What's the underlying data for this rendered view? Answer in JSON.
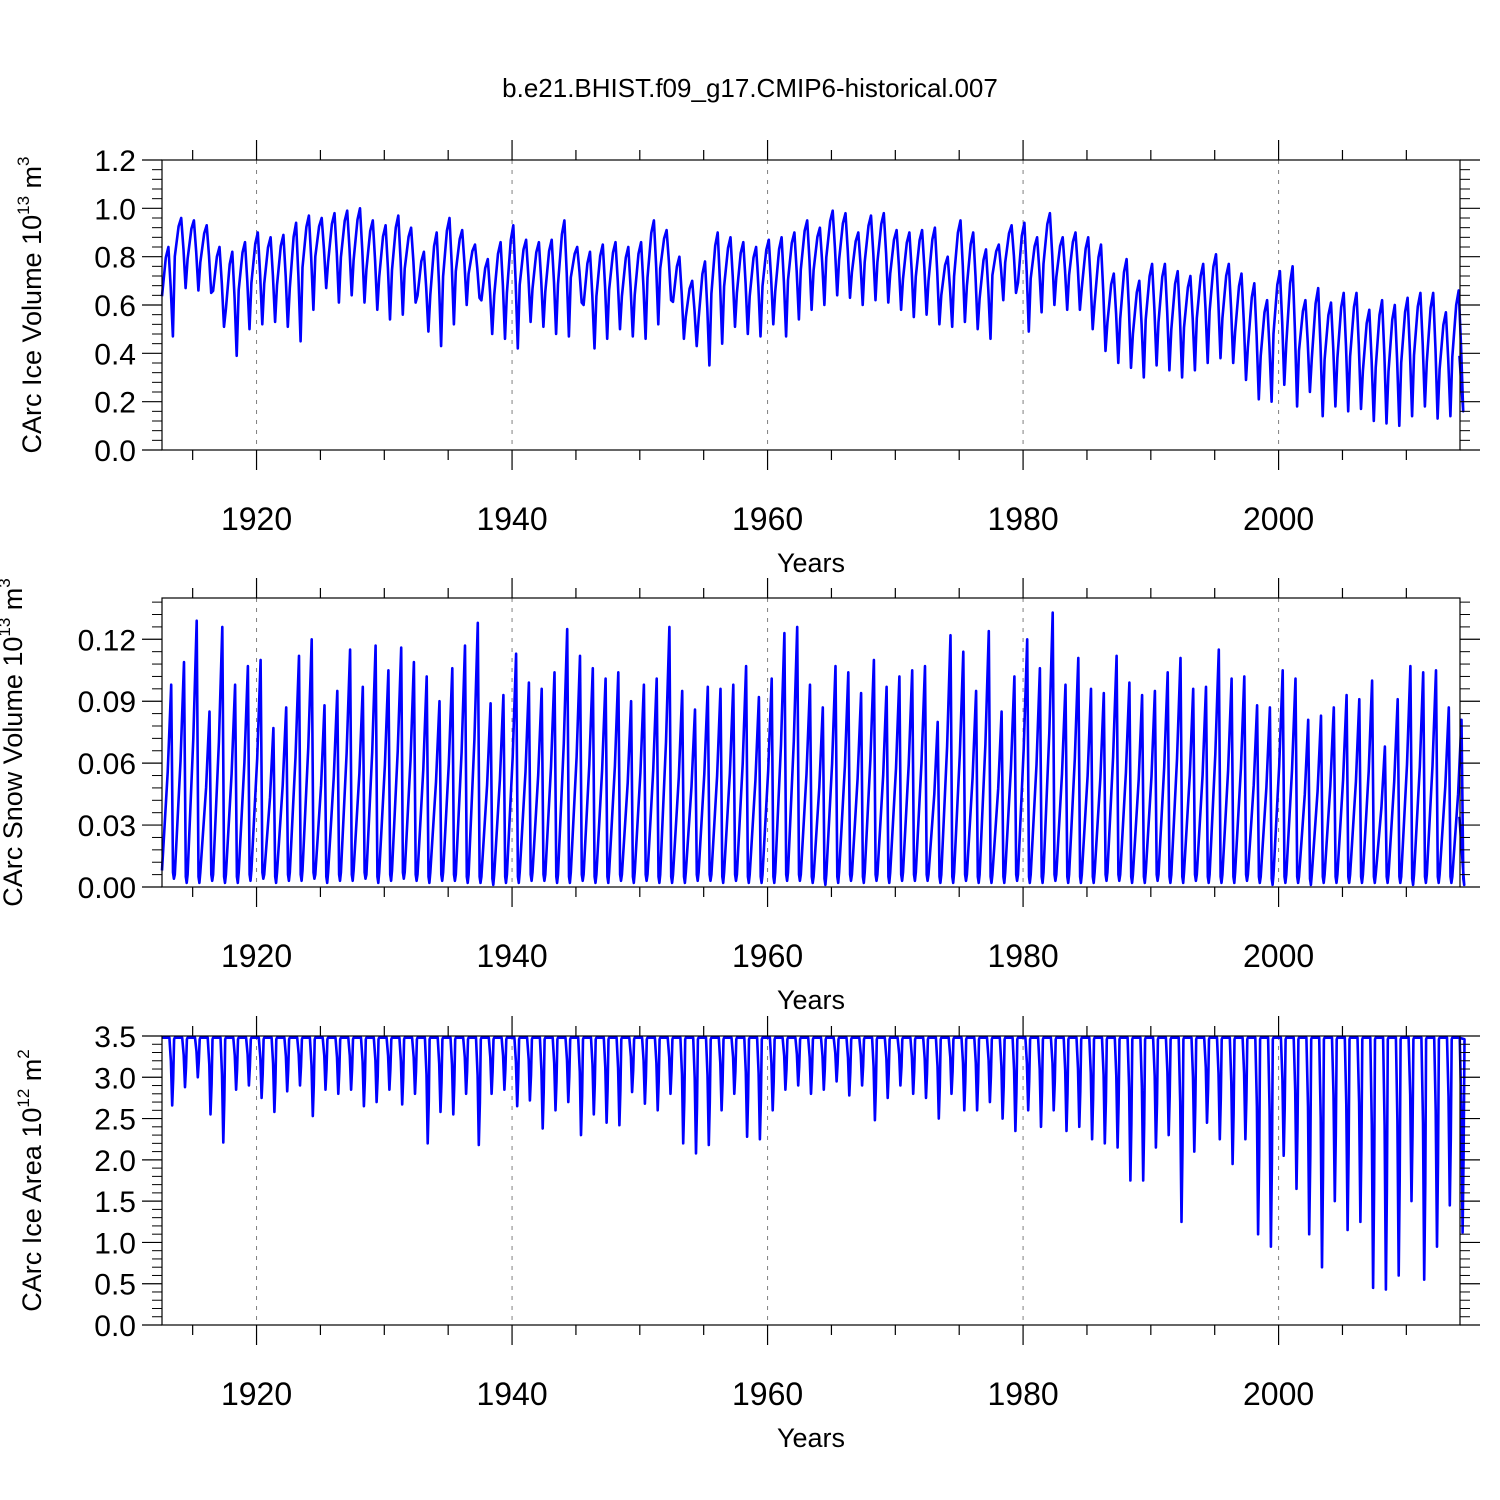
{
  "figure": {
    "title": "b.e21.BHIST.f09_g17.CMIP6-historical.007"
  },
  "colors": {
    "line": "#0000ff",
    "axis": "#000000",
    "grid": "#808080",
    "background": "#ffffff"
  },
  "chart_data": [
    {
      "type": "line",
      "name": "ice-volume-panel",
      "title": "",
      "xlabel": "Years",
      "ylabel": "CArc Ice Volume 10",
      "ylabel_sup": "13",
      "ylabel_unit": " m",
      "ylabel_unit_sup": "3",
      "xlim": [
        1912.6,
        2014.2
      ],
      "ylim": [
        0.0,
        1.2
      ],
      "yticks": [
        {
          "value": 0.0,
          "label": "0.0"
        },
        {
          "value": 0.2,
          "label": "0.2"
        },
        {
          "value": 0.4,
          "label": "0.4"
        },
        {
          "value": 0.6,
          "label": "0.6"
        },
        {
          "value": 0.8,
          "label": "0.8"
        },
        {
          "value": 1.0,
          "label": "1.0"
        },
        {
          "value": 1.2,
          "label": "1.2"
        }
      ],
      "xticks": [
        {
          "value": 1920,
          "label": "1920"
        },
        {
          "value": 1940,
          "label": "1940"
        },
        {
          "value": 1960,
          "label": "1960"
        },
        {
          "value": 1980,
          "label": "1980"
        },
        {
          "value": 2000,
          "label": "2000"
        }
      ],
      "grid_x": true,
      "series": [
        {
          "name": "CArc Ice Volume",
          "seasonal_cycle": "annual",
          "start_year": 1912.6,
          "annual_max": [
            0.84,
            0.96,
            0.95,
            0.93,
            0.84,
            0.82,
            0.86,
            0.9,
            0.88,
            0.89,
            0.94,
            0.97,
            0.96,
            0.98,
            0.99,
            1.0,
            0.95,
            0.93,
            0.97,
            0.92,
            0.82,
            0.9,
            0.96,
            0.91,
            0.85,
            0.79,
            0.86,
            0.93,
            0.87,
            0.86,
            0.87,
            0.95,
            0.84,
            0.82,
            0.85,
            0.86,
            0.84,
            0.86,
            0.95,
            0.91,
            0.8,
            0.7,
            0.78,
            0.9,
            0.88,
            0.86,
            0.84,
            0.87,
            0.88,
            0.9,
            0.95,
            0.92,
            0.99,
            0.98,
            0.9,
            0.97,
            0.98,
            0.91,
            0.9,
            0.91,
            0.92,
            0.8,
            0.95,
            0.9,
            0.83,
            0.85,
            0.93,
            0.94,
            0.88,
            0.98,
            0.88,
            0.9,
            0.88,
            0.85,
            0.73,
            0.79,
            0.7,
            0.77,
            0.77,
            0.74,
            0.72,
            0.77,
            0.81,
            0.77,
            0.73,
            0.69,
            0.62,
            0.74,
            0.76,
            0.62,
            0.67,
            0.61,
            0.65,
            0.65,
            0.58,
            0.62,
            0.6,
            0.63,
            0.65,
            0.65,
            0.57,
            0.66
          ],
          "annual_min": [
            0.47,
            0.67,
            0.66,
            0.65,
            0.51,
            0.39,
            0.5,
            0.52,
            0.53,
            0.51,
            0.45,
            0.58,
            0.67,
            0.61,
            0.64,
            0.61,
            0.58,
            0.54,
            0.56,
            0.61,
            0.49,
            0.43,
            0.52,
            0.6,
            0.63,
            0.48,
            0.46,
            0.42,
            0.53,
            0.51,
            0.48,
            0.47,
            0.61,
            0.42,
            0.46,
            0.5,
            0.47,
            0.46,
            0.52,
            0.62,
            0.46,
            0.43,
            0.35,
            0.44,
            0.51,
            0.48,
            0.47,
            0.52,
            0.47,
            0.54,
            0.58,
            0.6,
            0.64,
            0.63,
            0.6,
            0.62,
            0.61,
            0.58,
            0.55,
            0.56,
            0.52,
            0.51,
            0.53,
            0.5,
            0.46,
            0.62,
            0.65,
            0.49,
            0.57,
            0.6,
            0.58,
            0.58,
            0.5,
            0.41,
            0.36,
            0.34,
            0.3,
            0.35,
            0.33,
            0.3,
            0.33,
            0.36,
            0.38,
            0.36,
            0.29,
            0.21,
            0.2,
            0.27,
            0.18,
            0.24,
            0.14,
            0.18,
            0.16,
            0.17,
            0.12,
            0.11,
            0.1,
            0.14,
            0.18,
            0.13,
            0.14,
            0.16
          ],
          "end_value": 0.39
        }
      ]
    },
    {
      "type": "line",
      "name": "snow-volume-panel",
      "title": "",
      "xlabel": "Years",
      "ylabel": "CArc Snow Volume 10",
      "ylabel_sup": "13",
      "ylabel_unit": " m",
      "ylabel_unit_sup": "3",
      "xlim": [
        1912.6,
        2014.2
      ],
      "ylim": [
        0.0,
        0.14
      ],
      "yticks": [
        {
          "value": 0.0,
          "label": "0.00"
        },
        {
          "value": 0.03,
          "label": "0.03"
        },
        {
          "value": 0.06,
          "label": "0.06"
        },
        {
          "value": 0.09,
          "label": "0.09"
        },
        {
          "value": 0.12,
          "label": "0.12"
        }
      ],
      "xticks": [
        {
          "value": 1920,
          "label": "1920"
        },
        {
          "value": 1940,
          "label": "1940"
        },
        {
          "value": 1960,
          "label": "1960"
        },
        {
          "value": 1980,
          "label": "1980"
        },
        {
          "value": 2000,
          "label": "2000"
        }
      ],
      "grid_x": true,
      "series": [
        {
          "name": "CArc Snow Volume",
          "seasonal_cycle": "annual",
          "start_year": 1912.6,
          "annual_max": [
            0.098,
            0.109,
            0.129,
            0.085,
            0.126,
            0.098,
            0.107,
            0.11,
            0.077,
            0.087,
            0.112,
            0.12,
            0.088,
            0.095,
            0.115,
            0.097,
            0.117,
            0.105,
            0.116,
            0.109,
            0.102,
            0.09,
            0.106,
            0.117,
            0.128,
            0.089,
            0.093,
            0.113,
            0.099,
            0.096,
            0.104,
            0.125,
            0.112,
            0.106,
            0.101,
            0.104,
            0.09,
            0.098,
            0.101,
            0.126,
            0.095,
            0.086,
            0.097,
            0.096,
            0.098,
            0.107,
            0.092,
            0.101,
            0.123,
            0.126,
            0.098,
            0.087,
            0.107,
            0.104,
            0.094,
            0.11,
            0.097,
            0.102,
            0.105,
            0.107,
            0.08,
            0.122,
            0.114,
            0.095,
            0.124,
            0.085,
            0.102,
            0.12,
            0.106,
            0.133,
            0.098,
            0.111,
            0.096,
            0.094,
            0.112,
            0.099,
            0.093,
            0.095,
            0.104,
            0.111,
            0.096,
            0.097,
            0.115,
            0.101,
            0.102,
            0.088,
            0.087,
            0.105,
            0.101,
            0.081,
            0.083,
            0.087,
            0.093,
            0.091,
            0.1,
            0.068,
            0.091,
            0.107,
            0.104,
            0.105,
            0.087,
            0.081
          ],
          "annual_min": [
            0.004,
            0.002,
            0.002,
            0.003,
            0.002,
            0.002,
            0.003,
            0.004,
            0.002,
            0.003,
            0.003,
            0.004,
            0.002,
            0.003,
            0.003,
            0.004,
            0.002,
            0.003,
            0.004,
            0.003,
            0.002,
            0.003,
            0.003,
            0.002,
            0.002,
            0.001,
            0.002,
            0.002,
            0.003,
            0.003,
            0.002,
            0.002,
            0.003,
            0.002,
            0.002,
            0.003,
            0.002,
            0.003,
            0.002,
            0.002,
            0.002,
            0.003,
            0.003,
            0.002,
            0.003,
            0.002,
            0.002,
            0.002,
            0.003,
            0.003,
            0.002,
            0.001,
            0.002,
            0.003,
            0.002,
            0.003,
            0.002,
            0.003,
            0.003,
            0.003,
            0.002,
            0.002,
            0.003,
            0.002,
            0.002,
            0.002,
            0.003,
            0.002,
            0.002,
            0.003,
            0.002,
            0.002,
            0.002,
            0.003,
            0.003,
            0.002,
            0.002,
            0.003,
            0.002,
            0.002,
            0.003,
            0.002,
            0.002,
            0.002,
            0.003,
            0.002,
            0.001,
            0.002,
            0.002,
            0.001,
            0.002,
            0.002,
            0.002,
            0.002,
            0.002,
            0.002,
            0.002,
            0.001,
            0.002,
            0.002,
            0.002,
            0.001
          ],
          "end_value": 0.034
        }
      ]
    },
    {
      "type": "line",
      "name": "ice-area-panel",
      "title": "",
      "xlabel": "Years",
      "ylabel": "CArc Ice Area 10",
      "ylabel_sup": "12",
      "ylabel_unit": " m",
      "ylabel_unit_sup": "2",
      "xlim": [
        1912.6,
        2014.2
      ],
      "ylim": [
        0.0,
        3.5
      ],
      "yticks": [
        {
          "value": 0.0,
          "label": "0.0"
        },
        {
          "value": 0.5,
          "label": "0.5"
        },
        {
          "value": 1.0,
          "label": "1.0"
        },
        {
          "value": 1.5,
          "label": "1.5"
        },
        {
          "value": 2.0,
          "label": "2.0"
        },
        {
          "value": 2.5,
          "label": "2.5"
        },
        {
          "value": 3.0,
          "label": "3.0"
        },
        {
          "value": 3.5,
          "label": "3.5"
        }
      ],
      "xticks": [
        {
          "value": 1920,
          "label": "1920"
        },
        {
          "value": 1940,
          "label": "1940"
        },
        {
          "value": 1960,
          "label": "1960"
        },
        {
          "value": 1980,
          "label": "1980"
        },
        {
          "value": 2000,
          "label": "2000"
        }
      ],
      "grid_x": true,
      "series": [
        {
          "name": "CArc Ice Area",
          "seasonal_cycle": "annual",
          "start_year": 1912.6,
          "annual_max_value": 3.48,
          "annual_min": [
            2.66,
            2.88,
            3.0,
            2.55,
            2.21,
            2.85,
            2.9,
            2.75,
            2.58,
            2.83,
            2.9,
            2.53,
            2.85,
            2.8,
            2.85,
            2.65,
            2.7,
            2.85,
            2.67,
            2.8,
            2.2,
            2.58,
            2.55,
            2.8,
            2.18,
            2.8,
            2.85,
            2.65,
            2.72,
            2.38,
            2.6,
            2.7,
            2.3,
            2.55,
            2.45,
            2.42,
            2.82,
            2.68,
            2.6,
            2.8,
            2.2,
            2.08,
            2.18,
            2.6,
            2.8,
            2.28,
            2.25,
            2.6,
            2.85,
            2.9,
            2.8,
            2.85,
            2.95,
            2.78,
            2.9,
            2.48,
            2.75,
            2.9,
            2.8,
            2.75,
            2.5,
            2.8,
            2.6,
            2.6,
            2.7,
            2.5,
            2.35,
            2.6,
            2.4,
            2.6,
            2.35,
            2.4,
            2.25,
            2.2,
            2.15,
            1.75,
            1.75,
            2.15,
            2.3,
            1.25,
            2.1,
            2.45,
            2.25,
            1.95,
            2.25,
            1.1,
            0.95,
            2.05,
            1.65,
            1.1,
            0.7,
            1.5,
            1.15,
            1.25,
            0.45,
            0.43,
            0.6,
            1.5,
            0.55,
            0.95,
            1.45,
            1.12
          ],
          "end_value": 3.48
        }
      ]
    }
  ]
}
